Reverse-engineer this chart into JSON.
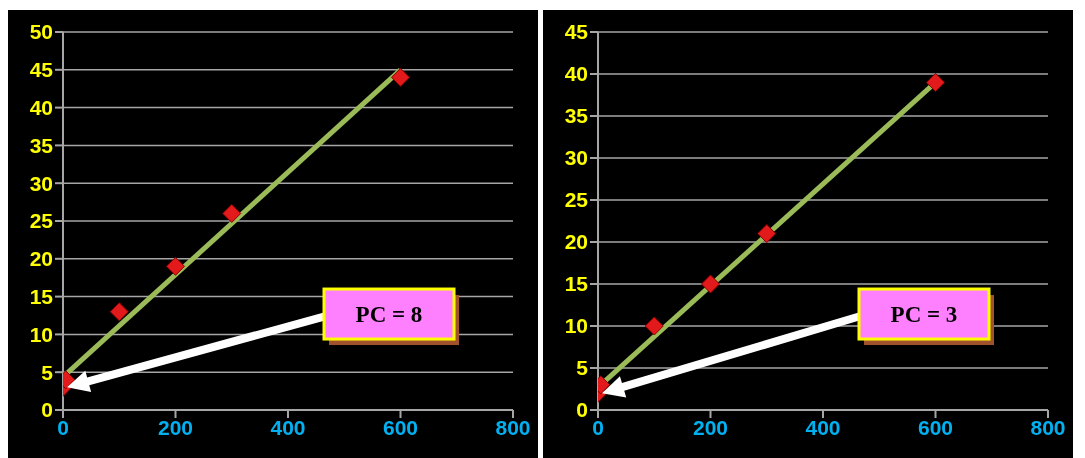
{
  "chart_data": [
    {
      "type": "scatter",
      "xlim": [
        0,
        800
      ],
      "xticks": [
        0,
        200,
        400,
        600,
        800
      ],
      "ylim": [
        0,
        50
      ],
      "yticks": [
        0,
        5,
        10,
        15,
        20,
        25,
        30,
        35,
        40,
        45,
        50
      ],
      "grid": "y",
      "line_style": "solid",
      "series": [
        {
          "color": "#e31a1c",
          "marker": "diamond",
          "x": [
            0,
            5,
            100,
            200,
            300,
            600
          ],
          "values": [
            3,
            4,
            13,
            19,
            26,
            44
          ]
        },
        {
          "type": "line",
          "marker": "none",
          "color": "#9bbb59",
          "x": [
            5,
            600
          ],
          "values": [
            4.7,
            45
          ]
        }
      ],
      "annotations": [
        "PC = 8"
      ]
    },
    {
      "type": "scatter",
      "xlim": [
        0,
        800
      ],
      "xticks": [
        0,
        200,
        400,
        600,
        800
      ],
      "ylim": [
        0,
        45
      ],
      "yticks": [
        0,
        5,
        10,
        15,
        20,
        25,
        30,
        35,
        40,
        45
      ],
      "grid": "y",
      "line_style": "solid",
      "series": [
        {
          "color": "#e31a1c",
          "marker": "diamond",
          "x": [
            0,
            5,
            100,
            200,
            300,
            600
          ],
          "values": [
            2,
            3,
            10,
            15,
            21,
            39
          ]
        },
        {
          "type": "line",
          "marker": "none",
          "color": "#9bbb59",
          "x": [
            5,
            600
          ],
          "values": [
            3,
            39
          ]
        }
      ],
      "annotations": [
        "PC = 3"
      ]
    }
  ]
}
